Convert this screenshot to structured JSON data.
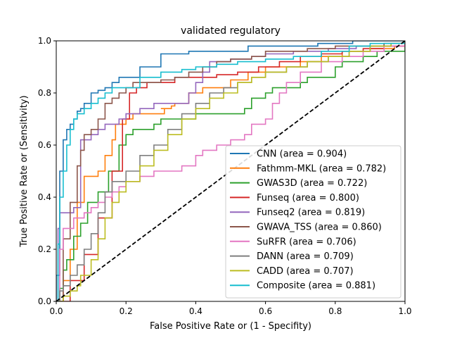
{
  "chart_data": {
    "type": "line",
    "title": "validated regulatory",
    "xlabel": "False Positive Rate or (1 - Specifity)",
    "ylabel": "True Positive Rate or (Sensitivity)",
    "xlim": [
      0,
      1
    ],
    "ylim": [
      0,
      1
    ],
    "xticks": [
      "0.0",
      "0.2",
      "0.4",
      "0.6",
      "0.8",
      "1.0"
    ],
    "yticks": [
      "0.0",
      "0.2",
      "0.4",
      "0.6",
      "0.8",
      "1.0"
    ],
    "grid": false,
    "legend_position": "lower-right",
    "diagonal": {
      "x": [
        0,
        1
      ],
      "y": [
        0,
        1
      ],
      "color": "#000000",
      "style": "dashed"
    },
    "series": [
      {
        "name": "CNN (area = 0.904)",
        "color": "#1f77b4",
        "x": [
          0,
          0,
          0.01,
          0.01,
          0.02,
          0.02,
          0.03,
          0.03,
          0.04,
          0.05,
          0.06,
          0.07,
          0.08,
          0.1,
          0.12,
          0.14,
          0.16,
          0.18,
          0.2,
          0.24,
          0.24,
          0.3,
          0.3,
          0.38,
          0.46,
          0.55,
          0.6,
          0.75,
          0.85,
          0.95,
          1.0
        ],
        "y": [
          0,
          0.1,
          0.3,
          0.5,
          0.6,
          0.62,
          0.64,
          0.66,
          0.68,
          0.7,
          0.73,
          0.74,
          0.76,
          0.8,
          0.81,
          0.82,
          0.84,
          0.86,
          0.86,
          0.88,
          0.9,
          0.9,
          0.95,
          0.96,
          0.96,
          0.98,
          0.98,
          0.99,
          1.0,
          1.0,
          1.0
        ]
      },
      {
        "name": "Fathmm-MKL (area = 0.782)",
        "color": "#ff7f0e",
        "x": [
          0,
          0.02,
          0.04,
          0.06,
          0.08,
          0.08,
          0.12,
          0.14,
          0.16,
          0.17,
          0.2,
          0.22,
          0.3,
          0.31,
          0.3,
          0.33,
          0.34,
          0.36,
          0.38,
          0.42,
          0.5,
          0.55,
          0.6,
          0.7,
          0.76,
          0.82,
          0.9,
          0.97,
          1.0
        ],
        "y": [
          0,
          0.08,
          0.2,
          0.38,
          0.44,
          0.48,
          0.5,
          0.56,
          0.62,
          0.68,
          0.7,
          0.72,
          0.72,
          0.74,
          0.74,
          0.75,
          0.76,
          0.76,
          0.8,
          0.82,
          0.85,
          0.88,
          0.9,
          0.92,
          0.94,
          0.96,
          0.97,
          0.98,
          1.0
        ]
      },
      {
        "name": "GWAS3D (area = 0.722)",
        "color": "#2ca02c",
        "x": [
          0,
          0.01,
          0.02,
          0.03,
          0.05,
          0.07,
          0.09,
          0.12,
          0.15,
          0.18,
          0.2,
          0.22,
          0.25,
          0.28,
          0.3,
          0.34,
          0.4,
          0.46,
          0.54,
          0.56,
          0.6,
          0.62,
          0.65,
          0.7,
          0.72,
          0.74,
          0.8,
          0.82,
          0.88,
          0.92,
          1.0
        ],
        "y": [
          0,
          0.05,
          0.12,
          0.16,
          0.25,
          0.3,
          0.38,
          0.42,
          0.5,
          0.6,
          0.64,
          0.66,
          0.66,
          0.68,
          0.7,
          0.7,
          0.72,
          0.72,
          0.74,
          0.78,
          0.8,
          0.82,
          0.82,
          0.84,
          0.86,
          0.86,
          0.9,
          0.92,
          0.94,
          0.96,
          1.0
        ]
      },
      {
        "name": "Funseq (area = 0.800)",
        "color": "#d62728",
        "x": [
          0,
          0.04,
          0.08,
          0.12,
          0.16,
          0.19,
          0.21,
          0.23,
          0.26,
          0.3,
          0.34,
          0.4,
          0.46,
          0.52,
          0.58,
          0.64,
          0.7,
          0.76,
          0.82,
          0.88,
          0.94,
          1.0
        ],
        "y": [
          0,
          0.08,
          0.18,
          0.32,
          0.5,
          0.7,
          0.8,
          0.82,
          0.84,
          0.84,
          0.86,
          0.86,
          0.87,
          0.88,
          0.9,
          0.92,
          0.94,
          0.95,
          0.96,
          0.97,
          0.98,
          1.0
        ]
      },
      {
        "name": "Funseq2 (area = 0.819)",
        "color": "#9467bd",
        "x": [
          0,
          0.005,
          0.01,
          0.02,
          0.05,
          0.07,
          0.07,
          0.08,
          0.1,
          0.12,
          0.14,
          0.18,
          0.2,
          0.24,
          0.28,
          0.34,
          0.38,
          0.4,
          0.42,
          0.44,
          0.46,
          0.5,
          0.56,
          0.6,
          0.68,
          0.78,
          0.86,
          0.94,
          1.0
        ],
        "y": [
          0,
          0.28,
          0.34,
          0.34,
          0.36,
          0.5,
          0.62,
          0.62,
          0.64,
          0.66,
          0.68,
          0.7,
          0.72,
          0.74,
          0.76,
          0.76,
          0.8,
          0.84,
          0.88,
          0.92,
          0.92,
          0.93,
          0.94,
          0.95,
          0.96,
          0.97,
          0.98,
          0.99,
          1.0
        ]
      },
      {
        "name": "GWAVA_TSS (area = 0.860)",
        "color": "#8c564b",
        "x": [
          0,
          0.02,
          0.04,
          0.06,
          0.07,
          0.08,
          0.1,
          0.12,
          0.14,
          0.16,
          0.18,
          0.2,
          0.22,
          0.26,
          0.3,
          0.34,
          0.38,
          0.42,
          0.46,
          0.5,
          0.56,
          0.6,
          0.66,
          0.72,
          0.8,
          0.88,
          0.94,
          1.0
        ],
        "y": [
          0,
          0.24,
          0.38,
          0.52,
          0.58,
          0.64,
          0.66,
          0.7,
          0.76,
          0.78,
          0.8,
          0.82,
          0.84,
          0.84,
          0.85,
          0.86,
          0.88,
          0.9,
          0.92,
          0.93,
          0.94,
          0.96,
          0.96,
          0.97,
          0.98,
          0.98,
          0.99,
          1.0
        ]
      },
      {
        "name": "SuRFR (area = 0.706)",
        "color": "#e377c2",
        "x": [
          0,
          0.01,
          0.02,
          0.05,
          0.08,
          0.1,
          0.12,
          0.14,
          0.16,
          0.18,
          0.2,
          0.24,
          0.28,
          0.3,
          0.36,
          0.4,
          0.42,
          0.46,
          0.5,
          0.54,
          0.56,
          0.6,
          0.62,
          0.64,
          0.66,
          0.7,
          0.76,
          0.82,
          0.88,
          0.94,
          1.0
        ],
        "y": [
          0,
          0.2,
          0.28,
          0.32,
          0.34,
          0.36,
          0.38,
          0.4,
          0.42,
          0.44,
          0.46,
          0.48,
          0.5,
          0.5,
          0.52,
          0.56,
          0.58,
          0.6,
          0.62,
          0.64,
          0.68,
          0.7,
          0.76,
          0.8,
          0.84,
          0.88,
          0.92,
          0.94,
          0.96,
          0.98,
          1.0
        ]
      },
      {
        "name": "DANN (area = 0.709)",
        "color": "#7f7f7f",
        "x": [
          0,
          0.01,
          0.02,
          0.04,
          0.06,
          0.08,
          0.1,
          0.12,
          0.14,
          0.16,
          0.2,
          0.24,
          0.28,
          0.32,
          0.36,
          0.4,
          0.44,
          0.48,
          0.52,
          0.56,
          0.6,
          0.66,
          0.72,
          0.78,
          0.84,
          0.9,
          0.96,
          1.0
        ],
        "y": [
          0,
          0.04,
          0.06,
          0.1,
          0.14,
          0.2,
          0.26,
          0.34,
          0.42,
          0.46,
          0.5,
          0.56,
          0.6,
          0.66,
          0.72,
          0.76,
          0.8,
          0.82,
          0.84,
          0.86,
          0.88,
          0.9,
          0.92,
          0.94,
          0.96,
          0.98,
          0.99,
          1.0
        ]
      },
      {
        "name": "CADD (area = 0.707)",
        "color": "#bcbd22",
        "x": [
          0,
          0.02,
          0.04,
          0.06,
          0.07,
          0.1,
          0.12,
          0.14,
          0.16,
          0.18,
          0.2,
          0.24,
          0.28,
          0.32,
          0.36,
          0.4,
          0.44,
          0.48,
          0.52,
          0.56,
          0.6,
          0.66,
          0.72,
          0.78,
          0.84,
          0.9,
          0.96,
          1.0
        ],
        "y": [
          0,
          0.02,
          0.04,
          0.06,
          0.1,
          0.16,
          0.24,
          0.32,
          0.38,
          0.42,
          0.46,
          0.52,
          0.58,
          0.64,
          0.7,
          0.74,
          0.78,
          0.8,
          0.84,
          0.86,
          0.88,
          0.9,
          0.92,
          0.94,
          0.96,
          0.98,
          0.99,
          1.0
        ]
      },
      {
        "name": "Composite (area = 0.881)",
        "color": "#17becf",
        "x": [
          0,
          0.005,
          0.01,
          0.02,
          0.03,
          0.04,
          0.05,
          0.06,
          0.08,
          0.1,
          0.12,
          0.14,
          0.16,
          0.2,
          0.24,
          0.3,
          0.36,
          0.4,
          0.46,
          0.52,
          0.6,
          0.68,
          0.76,
          0.84,
          0.9,
          0.96,
          1.0
        ],
        "y": [
          0,
          0.22,
          0.4,
          0.5,
          0.6,
          0.66,
          0.7,
          0.72,
          0.74,
          0.76,
          0.78,
          0.8,
          0.82,
          0.82,
          0.86,
          0.88,
          0.89,
          0.9,
          0.91,
          0.92,
          0.93,
          0.94,
          0.96,
          0.98,
          0.99,
          0.99,
          1.0
        ]
      }
    ]
  }
}
